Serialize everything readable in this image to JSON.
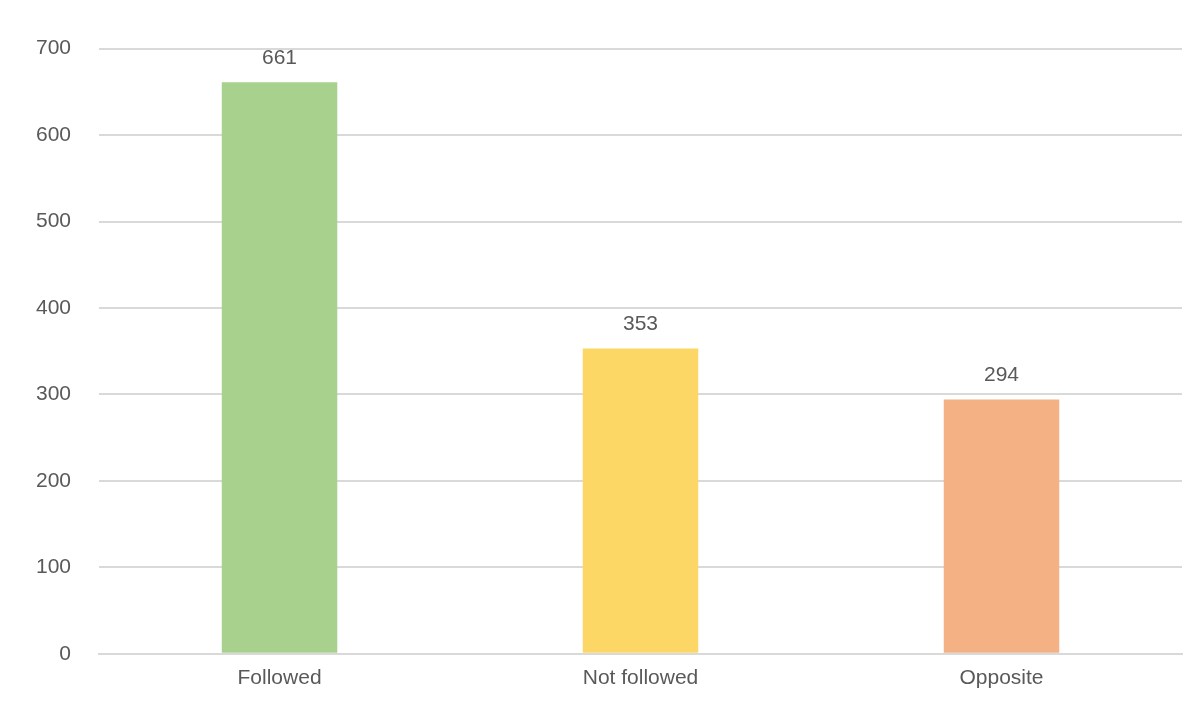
{
  "chart_data": {
    "type": "bar",
    "categories": [
      "Followed",
      "Not followed",
      "Opposite"
    ],
    "values": [
      661,
      353,
      294
    ],
    "colors": [
      "#a9d18e",
      "#fdd766",
      "#f4b183"
    ],
    "ylim": [
      0,
      700
    ],
    "yticks": [
      0,
      100,
      200,
      300,
      400,
      500,
      600,
      700
    ],
    "grid": "y",
    "data_labels": true,
    "legend": false
  }
}
